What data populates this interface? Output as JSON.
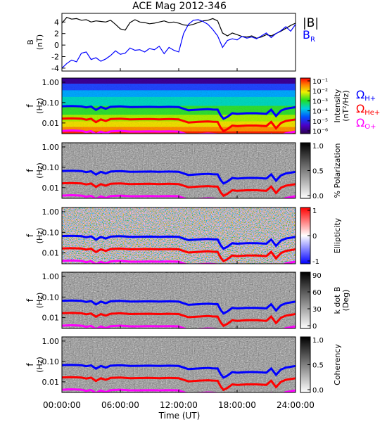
{
  "chart_data": {
    "type": "heatmap",
    "title": "ACE Mag 2012-346",
    "xlabel": "Time (UT)",
    "xlim": [
      0,
      24
    ],
    "x_ticks": [
      "00:00:00",
      "06:00:00",
      "12:00:00",
      "18:00:00",
      "24:00:00"
    ],
    "field_panel": {
      "ylabel": "B",
      "yunits": "(nT)",
      "ylim": [
        -4.5,
        5.5
      ],
      "y_ticks": [
        "4",
        "2",
        "0",
        "-2",
        "-4"
      ],
      "legend": [
        {
          "name": "|B|",
          "color": "#000000"
        },
        {
          "name": "B",
          "sub": "R",
          "color": "#0000ff"
        }
      ],
      "series": [
        {
          "name": "|B|",
          "color": "#000000",
          "x": [
            0,
            0.5,
            1,
            1.5,
            2,
            2.5,
            3,
            3.5,
            4,
            4.5,
            5,
            5.5,
            6,
            6.5,
            7,
            7.5,
            8,
            8.5,
            9,
            9.5,
            10,
            10.5,
            11,
            11.5,
            12,
            12.5,
            13,
            13.5,
            14,
            14.5,
            15,
            15.5,
            16,
            16.5,
            17,
            17.5,
            18,
            18.5,
            19,
            19.5,
            20,
            20.5,
            21,
            21.5,
            22,
            22.5,
            23,
            23.5,
            24
          ],
          "values": [
            3.8,
            4.8,
            4.5,
            4.6,
            4.3,
            4.4,
            4.0,
            4.2,
            4.1,
            4.0,
            4.3,
            3.6,
            2.8,
            2.6,
            3.9,
            4.4,
            4.0,
            3.9,
            3.7,
            3.8,
            4.0,
            4.2,
            3.9,
            4.0,
            3.8,
            3.5,
            3.4,
            3.6,
            3.9,
            4.2,
            4.3,
            4.6,
            4.2,
            2.1,
            1.6,
            2.1,
            1.8,
            1.5,
            1.4,
            1.6,
            1.2,
            1.4,
            1.8,
            1.6,
            2.0,
            2.4,
            2.9,
            3.4,
            3.8
          ]
        },
        {
          "name": "B_R",
          "color": "#0000ff",
          "x": [
            0,
            0.5,
            1,
            1.5,
            2,
            2.5,
            3,
            3.5,
            4,
            4.5,
            5,
            5.5,
            6,
            6.5,
            7,
            7.5,
            8,
            8.5,
            9,
            9.5,
            10,
            10.5,
            11,
            11.5,
            12,
            12.5,
            13,
            13.5,
            14,
            14.5,
            15,
            15.5,
            16,
            16.5,
            17,
            17.5,
            18,
            18.5,
            19,
            19.5,
            20,
            20.5,
            21,
            21.5,
            22,
            22.5,
            23,
            23.5,
            24
          ],
          "values": [
            -4.0,
            -3.2,
            -2.6,
            -2.9,
            -1.4,
            -1.2,
            -2.5,
            -2.2,
            -2.8,
            -2.4,
            -1.8,
            -1.0,
            -1.6,
            -1.4,
            -0.5,
            -0.9,
            -0.8,
            -1.2,
            -0.6,
            -0.8,
            -0.2,
            -1.5,
            -0.4,
            -0.9,
            -1.2,
            2.0,
            3.6,
            4.3,
            4.4,
            4.1,
            3.6,
            2.7,
            1.6,
            -0.4,
            0.8,
            1.1,
            0.9,
            1.5,
            1.2,
            1.4,
            1.1,
            1.6,
            2.1,
            1.3,
            2.0,
            2.5,
            3.2,
            2.4,
            3.6
          ]
        }
      ]
    },
    "spectrogram_panels": [
      {
        "name": "intensity",
        "cbar_label": "Intensity",
        "cbar_units": "(nT²/Hz)",
        "cbar_ticks": [
          "10⁻¹",
          "10⁻²",
          "10⁻³",
          "10⁻⁴",
          "10⁻⁵",
          "10⁻⁶"
        ],
        "colormap": "rainbow",
        "ylim": [
          0.003,
          1.6
        ]
      },
      {
        "name": "polarization",
        "cbar_label": "% Polarization",
        "cbar_units": "",
        "cbar_ticks": [
          "1.0",
          "0.5",
          "0.0"
        ],
        "colormap": "gray",
        "ylim": [
          0.003,
          1.6
        ]
      },
      {
        "name": "ellipticity",
        "cbar_label": "Ellipticity",
        "cbar_units": "",
        "cbar_ticks": [
          "1",
          "0",
          "-1"
        ],
        "colormap": "bwr",
        "ylim": [
          0.003,
          1.6
        ]
      },
      {
        "name": "kdotb",
        "cbar_label": "k dot B",
        "cbar_units": "(Deg)",
        "cbar_ticks": [
          "90",
          "60",
          "30",
          "0"
        ],
        "colormap": "gray",
        "ylim": [
          0.003,
          1.6
        ]
      },
      {
        "name": "coherency",
        "cbar_label": "Coherency",
        "cbar_units": "",
        "cbar_ticks": [
          "1.0",
          "0.5",
          "0.0"
        ],
        "colormap": "gray",
        "ylim": [
          0.003,
          1.6
        ]
      }
    ],
    "spectrogram_ylabel": "f",
    "spectrogram_yunits": "(Hz)",
    "spectrogram_y_ticks": [
      {
        "label": "1.00",
        "value": 1.0
      },
      {
        "label": "0.10",
        "value": 0.1
      },
      {
        "label": "0.01",
        "value": 0.01
      }
    ],
    "gyrofrequency_legend": [
      {
        "symbol": "Ω",
        "sub": "H+",
        "color": "#0000ff"
      },
      {
        "symbol": "Ω",
        "sub": "He+",
        "color": "#ff0000"
      },
      {
        "symbol": "Ω",
        "sub": "O+",
        "color": "#ff00ff"
      }
    ],
    "gyrofrequency_series": [
      {
        "name": "Ω_H+",
        "color": "#0000ff",
        "x": [
          0,
          1,
          2,
          2.5,
          3,
          3.5,
          4,
          4.5,
          5,
          6,
          7,
          8,
          9,
          10,
          11,
          12,
          12.5,
          13,
          14,
          15,
          15.5,
          16,
          16.3,
          16.6,
          17,
          17.5,
          18,
          19,
          20,
          21,
          21.5,
          22,
          22.5,
          23,
          24
        ],
        "values": [
          0.066,
          0.068,
          0.065,
          0.058,
          0.064,
          0.044,
          0.06,
          0.05,
          0.062,
          0.065,
          0.06,
          0.061,
          0.062,
          0.06,
          0.062,
          0.06,
          0.05,
          0.042,
          0.045,
          0.048,
          0.046,
          0.045,
          0.024,
          0.016,
          0.02,
          0.03,
          0.028,
          0.03,
          0.03,
          0.028,
          0.045,
          0.022,
          0.04,
          0.05,
          0.06
        ]
      },
      {
        "name": "Ω_He+",
        "color": "#ff0000",
        "x": [
          0,
          1,
          2,
          2.5,
          3,
          3.5,
          4,
          4.5,
          5,
          6,
          7,
          8,
          9,
          10,
          11,
          12,
          12.5,
          13,
          14,
          15,
          15.5,
          16,
          16.3,
          16.6,
          17,
          17.5,
          18,
          19,
          20,
          21,
          21.5,
          22,
          22.5,
          23,
          24
        ],
        "values": [
          0.0165,
          0.017,
          0.0163,
          0.0145,
          0.016,
          0.011,
          0.015,
          0.0125,
          0.0155,
          0.0163,
          0.015,
          0.0153,
          0.0155,
          0.015,
          0.0155,
          0.015,
          0.0125,
          0.0105,
          0.0113,
          0.012,
          0.0115,
          0.0113,
          0.006,
          0.004,
          0.005,
          0.0075,
          0.007,
          0.0075,
          0.0075,
          0.007,
          0.0113,
          0.0055,
          0.01,
          0.0125,
          0.015
        ]
      },
      {
        "name": "Ω_O+",
        "color": "#ff00ff",
        "x": [
          0,
          1,
          2,
          2.5,
          3,
          3.5,
          4,
          4.5,
          5,
          6,
          7,
          8,
          9,
          10,
          11,
          12,
          12.5,
          13,
          14,
          15,
          15.5,
          16,
          16.3,
          16.6,
          17,
          17.5,
          18,
          19,
          20,
          21,
          21.5,
          22,
          22.5,
          23,
          24
        ],
        "values": [
          0.0041,
          0.0043,
          0.0041,
          0.0036,
          0.004,
          0.0028,
          0.0038,
          0.0031,
          0.0039,
          0.0041,
          0.0038,
          0.0038,
          0.0039,
          0.0038,
          0.0039,
          0.0038,
          0.0031,
          0.0026,
          0.0028,
          0.003,
          0.0029,
          0.0028,
          0.0015,
          0.001,
          0.0013,
          0.0019,
          0.0018,
          0.0019,
          0.0019,
          0.0018,
          0.0028,
          0.0014,
          0.0025,
          0.0031,
          0.0038
        ]
      }
    ]
  }
}
